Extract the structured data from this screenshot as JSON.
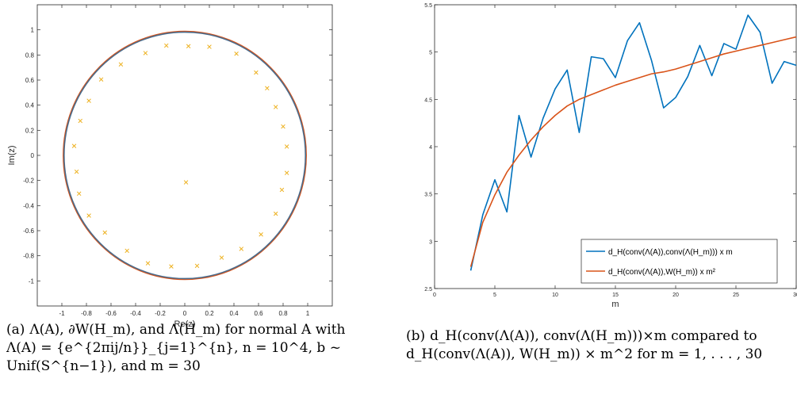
{
  "chart_data": [
    {
      "type": "scatter",
      "xlabel": "Re(z)",
      "ylabel": "Im(z)",
      "xlim": [
        -1.2,
        1.2
      ],
      "ylim": [
        -1.2,
        1.2
      ],
      "xticks": [
        -1,
        -0.8,
        -0.6,
        -0.4,
        -0.2,
        0,
        0.2,
        0.4,
        0.6,
        0.8,
        1
      ],
      "yticks": [
        -1,
        -0.8,
        -0.6,
        -0.4,
        -0.2,
        0,
        0.2,
        0.4,
        0.6,
        0.8,
        1
      ],
      "grid": false,
      "curves": [
        {
          "kind": "circle",
          "center": [
            0,
            0
          ],
          "radius": 0.988,
          "color": "#D95319"
        },
        {
          "kind": "circle",
          "center": [
            0,
            0
          ],
          "radius": 0.982,
          "color": "#4A6C8C"
        }
      ],
      "points_color": "#EDB120",
      "marker": "x",
      "points": [
        [
          -0.15,
          0.875
        ],
        [
          0.03,
          0.87
        ],
        [
          0.2,
          0.865
        ],
        [
          0.42,
          0.81
        ],
        [
          -0.32,
          0.815
        ],
        [
          -0.52,
          0.725
        ],
        [
          0.58,
          0.66
        ],
        [
          -0.68,
          0.605
        ],
        [
          0.67,
          0.535
        ],
        [
          -0.78,
          0.435
        ],
        [
          0.74,
          0.385
        ],
        [
          -0.85,
          0.275
        ],
        [
          0.8,
          0.23
        ],
        [
          -0.9,
          0.075
        ],
        [
          0.83,
          0.07
        ],
        [
          -0.88,
          -0.13
        ],
        [
          0.83,
          -0.14
        ],
        [
          -0.86,
          -0.305
        ],
        [
          0.79,
          -0.275
        ],
        [
          -0.78,
          -0.48
        ],
        [
          0.74,
          -0.465
        ],
        [
          -0.65,
          -0.615
        ],
        [
          0.62,
          -0.63
        ],
        [
          -0.47,
          -0.76
        ],
        [
          0.46,
          -0.745
        ],
        [
          -0.3,
          -0.86
        ],
        [
          0.3,
          -0.815
        ],
        [
          -0.11,
          -0.885
        ],
        [
          0.1,
          -0.88
        ],
        [
          0.01,
          -0.215
        ]
      ]
    },
    {
      "type": "line",
      "xlabel": "m",
      "ylabel": "",
      "xlim": [
        0,
        30
      ],
      "ylim": [
        2.5,
        5.5
      ],
      "xticks": [
        0,
        5,
        10,
        15,
        20,
        25,
        30
      ],
      "yticks": [
        2.5,
        3,
        3.5,
        4,
        4.5,
        5,
        5.5
      ],
      "grid": false,
      "legend_position": "lower-right",
      "x": [
        3,
        4,
        5,
        6,
        7,
        8,
        9,
        10,
        11,
        12,
        13,
        14,
        15,
        16,
        17,
        18,
        19,
        20,
        21,
        22,
        23,
        24,
        25,
        26,
        27,
        28,
        29,
        30
      ],
      "series": [
        {
          "name": "d_H(conv(Λ(A)),conv(Λ(H_m))) x m",
          "color": "#0072BD",
          "values": [
            2.69,
            3.28,
            3.65,
            3.31,
            4.33,
            3.89,
            4.3,
            4.61,
            4.81,
            4.15,
            4.95,
            4.93,
            4.73,
            5.12,
            5.31,
            4.91,
            4.41,
            4.52,
            4.74,
            5.07,
            4.75,
            5.09,
            5.03,
            5.39,
            5.21,
            4.67,
            4.9,
            4.86
          ]
        },
        {
          "name": "d_H(conv(Λ(A)),W(H_m)) x m²",
          "color": "#D95319",
          "values": [
            2.73,
            3.2,
            3.49,
            3.73,
            3.91,
            4.07,
            4.21,
            4.33,
            4.43,
            4.5,
            4.55,
            4.6,
            4.65,
            4.69,
            4.73,
            4.77,
            4.79,
            4.82,
            4.86,
            4.9,
            4.94,
            4.98,
            5.01,
            5.04,
            5.07,
            5.1,
            5.13,
            5.16
          ]
        }
      ]
    }
  ],
  "captions": {
    "a_label": "(a)",
    "a_text": "Λ(A), ∂W(H_m), and Λ(H_m) for normal A with Λ(A) = {e^{2πij/n}}_{j=1}^{n}, n = 10^4, b ~ Unif(S^{n−1}), and m = 30",
    "b_label": "(b)",
    "b_text": "d_H(conv(Λ(A)), conv(Λ(H_m)))×m compared to d_H(conv(Λ(A)), W(H_m)) × m^2 for m = 1, . . . , 30"
  }
}
